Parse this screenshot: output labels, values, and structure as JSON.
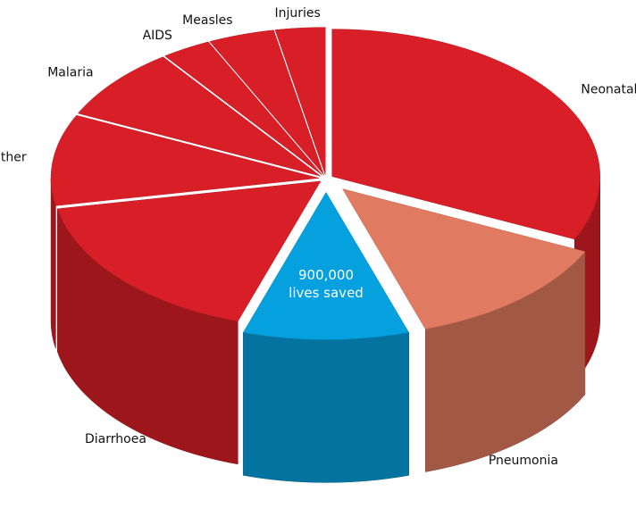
{
  "chart_data": {
    "type": "pie3d",
    "categories": [
      "Neonatal",
      "Pneumonia",
      "900,000 lives saved",
      "Diarrhoea",
      "Other",
      "Malaria",
      "AIDS",
      "Measles",
      "Injuries"
    ],
    "values": [
      32,
      13,
      10,
      17,
      10,
      8,
      3,
      4,
      3
    ],
    "colors": [
      "#d81e27",
      "#e07a60",
      "#05a0de",
      "#d81e27",
      "#d81e27",
      "#d81e27",
      "#d81e27",
      "#d81e27",
      "#d81e27"
    ]
  }
}
